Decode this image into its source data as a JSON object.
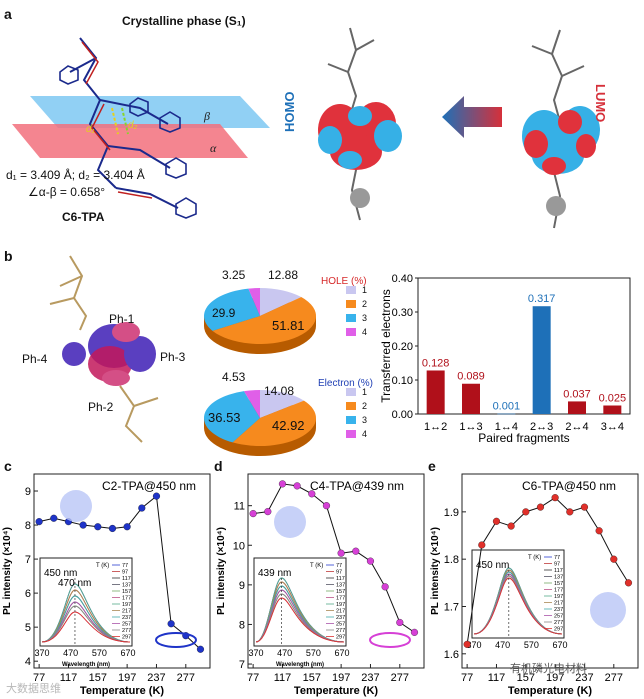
{
  "panel_a": {
    "label": "a",
    "title": "Crystalline phase (S₁)",
    "plane_beta": "β",
    "plane_alpha": "α",
    "d1_mark": "d₁",
    "d2_mark": "d₂",
    "distances": "d₁ = 3.409 Å; d₂ = 3.404 Å",
    "angle": "∠α-β = 0.658°",
    "molecule": "C6-TPA",
    "homo": "HOMO",
    "lumo": "LUMO"
  },
  "panel_b": {
    "label": "b",
    "fragments": {
      "ph1": "Ph-1",
      "ph2": "Ph-2",
      "ph3": "Ph-3",
      "ph4": "Ph-4"
    },
    "hole_pie": {
      "title": "HOLE (%)",
      "values": [
        "12.88",
        "51.81",
        "29.9",
        "3.25"
      ],
      "legend": [
        "1",
        "2",
        "3",
        "4"
      ]
    },
    "electron_pie": {
      "title": "Electron (%)",
      "values": [
        "14.08",
        "42.92",
        "36.53",
        "4.53"
      ],
      "legend": [
        "1",
        "2",
        "3",
        "4"
      ]
    }
  },
  "chart_data": [
    {
      "type": "bar",
      "panel": "b",
      "ylabel": "Transferred electrons",
      "xlabel": "Paired fragments",
      "ylim": [
        0,
        0.4
      ],
      "yticks": [
        "0.00",
        "0.10",
        "0.20",
        "0.30",
        "0.40"
      ],
      "categories": [
        "1↔2",
        "1↔3",
        "1↔4",
        "2↔3",
        "2↔4",
        "3↔4"
      ],
      "values": [
        0.128,
        0.089,
        0.001,
        0.317,
        0.037,
        0.025
      ],
      "labels": [
        "0.128",
        "0.089",
        "0.001",
        "0.317",
        "0.037",
        "0.025"
      ]
    },
    {
      "type": "line",
      "panel": "c",
      "title": "C2-TPA@450 nm",
      "xlabel": "Temperature (K)",
      "ylabel": "PL intensity (×10⁴)",
      "xlim": [
        70,
        310
      ],
      "ylim": [
        3.8,
        9.5
      ],
      "xticks": [
        "77",
        "117",
        "157",
        "197",
        "237",
        "277"
      ],
      "yticks": [
        "4",
        "5",
        "6",
        "7",
        "8",
        "9"
      ],
      "x": [
        77,
        97,
        117,
        137,
        157,
        177,
        197,
        217,
        237,
        257,
        277,
        297
      ],
      "y": [
        8.1,
        8.2,
        8.1,
        8.0,
        7.95,
        7.9,
        7.95,
        8.5,
        8.85,
        5.1,
        4.75,
        4.35
      ],
      "inset": {
        "peaks": [
          "450 nm",
          "470 nm"
        ],
        "xticks": [
          "370",
          "470",
          "570",
          "670"
        ],
        "xlabel": "Wavelength (nm)",
        "legend_title": "T (K)",
        "legend": [
          "77",
          "97",
          "117",
          "137",
          "157",
          "177",
          "197",
          "217",
          "237",
          "257",
          "277",
          "297"
        ]
      }
    },
    {
      "type": "line",
      "panel": "d",
      "title": "C4-TPA@439 nm",
      "xlabel": "Temperature (K)",
      "ylabel": "PL intensity (×10⁴)",
      "xlim": [
        70,
        310
      ],
      "ylim": [
        6.9,
        11.8
      ],
      "xticks": [
        "77",
        "117",
        "157",
        "197",
        "237",
        "277"
      ],
      "yticks": [
        "7",
        "8",
        "9",
        "10",
        "11"
      ],
      "x": [
        77,
        97,
        117,
        137,
        157,
        177,
        197,
        217,
        237,
        257,
        277,
        297
      ],
      "y": [
        10.8,
        10.85,
        11.55,
        11.5,
        11.3,
        11.0,
        9.8,
        9.85,
        9.6,
        8.95,
        8.05,
        7.8
      ],
      "inset": {
        "peaks": [
          "439 nm"
        ],
        "xticks": [
          "370",
          "470",
          "570",
          "670"
        ],
        "xlabel": "Wavelength (nm)",
        "legend_title": "T (K)",
        "legend": [
          "77",
          "97",
          "117",
          "137",
          "157",
          "177",
          "197",
          "217",
          "237",
          "257",
          "277",
          "297"
        ]
      }
    },
    {
      "type": "line",
      "panel": "e",
      "title": "C6-TPA@450 nm",
      "xlabel": "Temperature (K)",
      "ylabel": "PL intensity (×10⁴)",
      "xlim": [
        70,
        310
      ],
      "ylim": [
        1.57,
        1.98
      ],
      "xticks": [
        "77",
        "117",
        "157",
        "197",
        "237",
        "277"
      ],
      "yticks": [
        "1.6",
        "1.7",
        "1.8",
        "1.9"
      ],
      "x": [
        77,
        97,
        117,
        137,
        157,
        177,
        197,
        217,
        237,
        257,
        277,
        297
      ],
      "y": [
        1.62,
        1.83,
        1.88,
        1.87,
        1.9,
        1.91,
        1.93,
        1.9,
        1.91,
        1.86,
        1.8,
        1.75
      ],
      "inset": {
        "peaks": [
          "450 nm"
        ],
        "xticks": [
          "370",
          "470",
          "570",
          "670"
        ],
        "legend_title": "T (K)",
        "legend": [
          "77",
          "97",
          "117",
          "137",
          "157",
          "177",
          "197",
          "217",
          "237",
          "257",
          "277",
          "297"
        ]
      }
    }
  ],
  "colors": {
    "hole_title": "#d62728",
    "electron_title": "#1f3fb4",
    "bar_red": "#b0101a",
    "bar_blue": "#1e70b8",
    "line_c": "#1f34c8",
    "line_d": "#d640d6",
    "line_e": "#e0302a"
  },
  "watermark_left": "大数据思维",
  "watermark_right": "有机磷光电材料"
}
